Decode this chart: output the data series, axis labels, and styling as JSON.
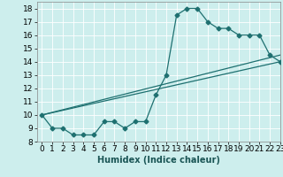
{
  "xlabel": "Humidex (Indice chaleur)",
  "xlim": [
    -0.5,
    23
  ],
  "ylim": [
    8,
    18.5
  ],
  "yticks": [
    8,
    9,
    10,
    11,
    12,
    13,
    14,
    15,
    16,
    17,
    18
  ],
  "xticks": [
    0,
    1,
    2,
    3,
    4,
    5,
    6,
    7,
    8,
    9,
    10,
    11,
    12,
    13,
    14,
    15,
    16,
    17,
    18,
    19,
    20,
    21,
    22,
    23
  ],
  "bg_color": "#cdeeed",
  "line_color": "#1e7070",
  "line1_x": [
    0,
    1,
    2,
    3,
    4,
    5,
    6,
    7,
    8,
    9,
    10,
    11,
    12,
    13,
    14,
    15,
    16,
    17,
    18,
    19,
    20,
    21,
    22,
    23
  ],
  "line1_y": [
    10,
    9,
    9,
    8.5,
    8.5,
    8.5,
    9.5,
    9.5,
    9,
    9.5,
    9.5,
    11.5,
    13,
    17.5,
    18,
    18,
    17,
    16.5,
    16.5,
    16,
    16,
    16,
    14.5,
    14
  ],
  "line2_x": [
    0,
    23
  ],
  "line2_y": [
    10,
    14
  ],
  "line3_x": [
    0,
    23
  ],
  "line3_y": [
    10,
    14.5
  ],
  "marker": "D",
  "markersize": 2.5,
  "linewidth": 0.9,
  "tick_fontsize": 6.5,
  "xlabel_fontsize": 7
}
